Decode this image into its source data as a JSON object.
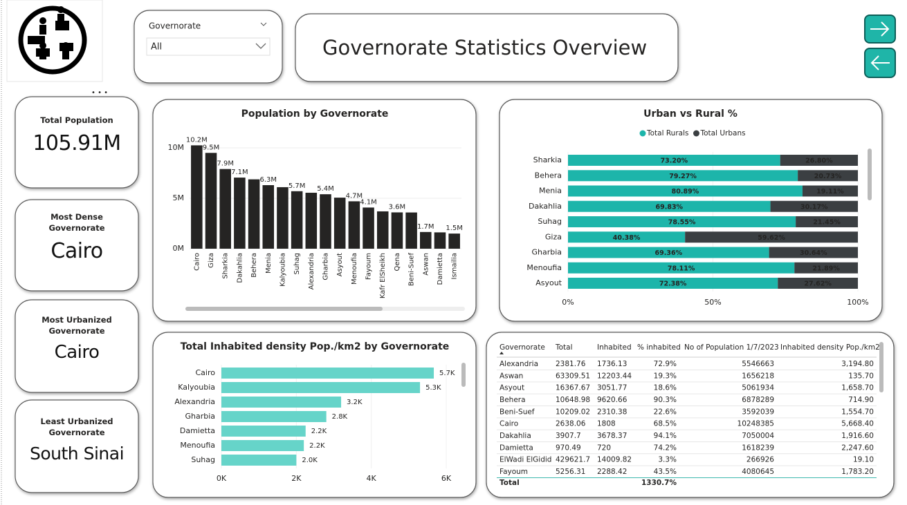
{
  "header": {
    "title": "Governorate Statistics Overview"
  },
  "slicer": {
    "label": "Governorate",
    "value": "All"
  },
  "cards": [
    {
      "label": "Total Population",
      "value": "105.91M"
    },
    {
      "label": "Most Dense Governorate",
      "value": "Cairo"
    },
    {
      "label": "Most Urbanized Governorate",
      "value": "Cairo"
    },
    {
      "label": "Least Urbanized Governorate",
      "value": "South Sinai"
    }
  ],
  "chart_data": [
    {
      "type": "bar",
      "orientation": "vertical",
      "title": "Population by Governorate",
      "categories": [
        "Cairo",
        "Giza",
        "Sharkia",
        "Dakahlia",
        "Behera",
        "Menia",
        "Kalyoubia",
        "Suhag",
        "Alexandria",
        "Gharbia",
        "Asyout",
        "Menoufia",
        "Fayoum",
        "Kafr ElSheikh",
        "Qena",
        "Beni-Suef",
        "Aswan",
        "Damietta",
        "Ismailia"
      ],
      "values": [
        10248385,
        9500000,
        7900000,
        7050004,
        6878289,
        6300000,
        6100000,
        5700000,
        5546663,
        5400000,
        5061934,
        4700000,
        4080645,
        3700000,
        3600000,
        3592039,
        1656218,
        1618239,
        1500000
      ],
      "value_labels": [
        "10.2M",
        "9.5M",
        "7.9M",
        "7.1M",
        null,
        "6.3M",
        null,
        "5.7M",
        null,
        "5.4M",
        null,
        "4.7M",
        "4.1M",
        null,
        "3.6M",
        null,
        "1.7M",
        null,
        "1.5M"
      ],
      "color": "#252423",
      "ylim": [
        0,
        11000000
      ],
      "yticks": [
        {
          "value": 0,
          "label": "0M"
        },
        {
          "value": 5000000,
          "label": "5M"
        },
        {
          "value": 10000000,
          "label": "10M"
        }
      ],
      "grid": true
    },
    {
      "type": "bar",
      "orientation": "horizontal",
      "stacked": true,
      "title": "Urban vs Rural %",
      "categories": [
        "Sharkia",
        "Behera",
        "Menia",
        "Dakahlia",
        "Suhag",
        "Giza",
        "Gharbia",
        "Menoufia",
        "Asyout"
      ],
      "series": [
        {
          "name": "Total Rurals",
          "color": "#1db5aa",
          "values": [
            73.2,
            79.27,
            80.89,
            69.83,
            78.55,
            40.38,
            69.36,
            78.11,
            72.38
          ],
          "value_labels": [
            "73.20%",
            "79.27%",
            "80.89%",
            "69.83%",
            "78.55%",
            "40.38%",
            "69.36%",
            "78.11%",
            "72.38%"
          ]
        },
        {
          "name": "Total Urbans",
          "color": "#3b3f42",
          "values": [
            26.8,
            20.73,
            19.11,
            30.17,
            21.45,
            59.62,
            30.64,
            21.89,
            27.62
          ],
          "value_labels": [
            "26.80%",
            "20.73%",
            "19.11%",
            "30.17%",
            "21.45%",
            "59.62%",
            "30.64%",
            "21.89%",
            "27.62%"
          ]
        }
      ],
      "xlim": [
        0,
        100
      ],
      "xticks": [
        {
          "value": 0,
          "label": "0%"
        },
        {
          "value": 50,
          "label": "50%"
        },
        {
          "value": 100,
          "label": "100%"
        }
      ],
      "legend": "top"
    },
    {
      "type": "bar",
      "orientation": "horizontal",
      "title": "Total Inhabited density Pop./km2 by Governorate",
      "categories": [
        "Cairo",
        "Kalyoubia",
        "Alexandria",
        "Gharbia",
        "Damietta",
        "Menoufia",
        "Suhag"
      ],
      "values": [
        5668.4,
        5300,
        3194.8,
        2800,
        2247.6,
        2200,
        2000
      ],
      "value_labels": [
        "5.7K",
        "5.3K",
        "3.2K",
        "2.8K",
        "2.2K",
        "2.2K",
        "2.0K"
      ],
      "color": "#66d4c9",
      "xlim": [
        0,
        6000
      ],
      "xticks": [
        {
          "value": 0,
          "label": "0K"
        },
        {
          "value": 2000,
          "label": "2K"
        },
        {
          "value": 4000,
          "label": "4K"
        },
        {
          "value": 6000,
          "label": "6K"
        }
      ]
    }
  ],
  "table": {
    "columns": [
      "Governorate",
      "Total",
      "Inhabited",
      "% inhabited",
      "No of Population 1/7/2023",
      "Inhabited density Pop./km2"
    ],
    "rows": [
      [
        "Alexandria",
        "2381.76",
        "1736.13",
        "72.9%",
        "5546663",
        "3,194.80"
      ],
      [
        "Aswan",
        "63309.51",
        "12203.44",
        "19.3%",
        "1656218",
        "135.70"
      ],
      [
        "Asyout",
        "16367.67",
        "3051.77",
        "18.6%",
        "5061934",
        "1,658.70"
      ],
      [
        "Behera",
        "10648.98",
        "9620.66",
        "90.3%",
        "6878289",
        "714.90"
      ],
      [
        "Beni-Suef",
        "10209.02",
        "2310.38",
        "22.6%",
        "3592039",
        "1,554.70"
      ],
      [
        "Cairo",
        "2638.06",
        "1808",
        "68.5%",
        "10248385",
        "5,668.40"
      ],
      [
        "Dakahlia",
        "3907.7",
        "3678.37",
        "94.1%",
        "7050004",
        "1,916.60"
      ],
      [
        "Damietta",
        "970.49",
        "720",
        "74.2%",
        "1618239",
        "2,247.60"
      ],
      [
        "ElWadi ElGidid",
        "429621.7",
        "14009.82",
        "3.3%",
        "266926",
        "19.10"
      ],
      [
        "Fayoum",
        "5256.31",
        "2288.42",
        "43.5%",
        "4080645",
        "1,783.20"
      ]
    ],
    "total": {
      "label": "Total",
      "pct_inhabited": "1330.7%"
    }
  }
}
